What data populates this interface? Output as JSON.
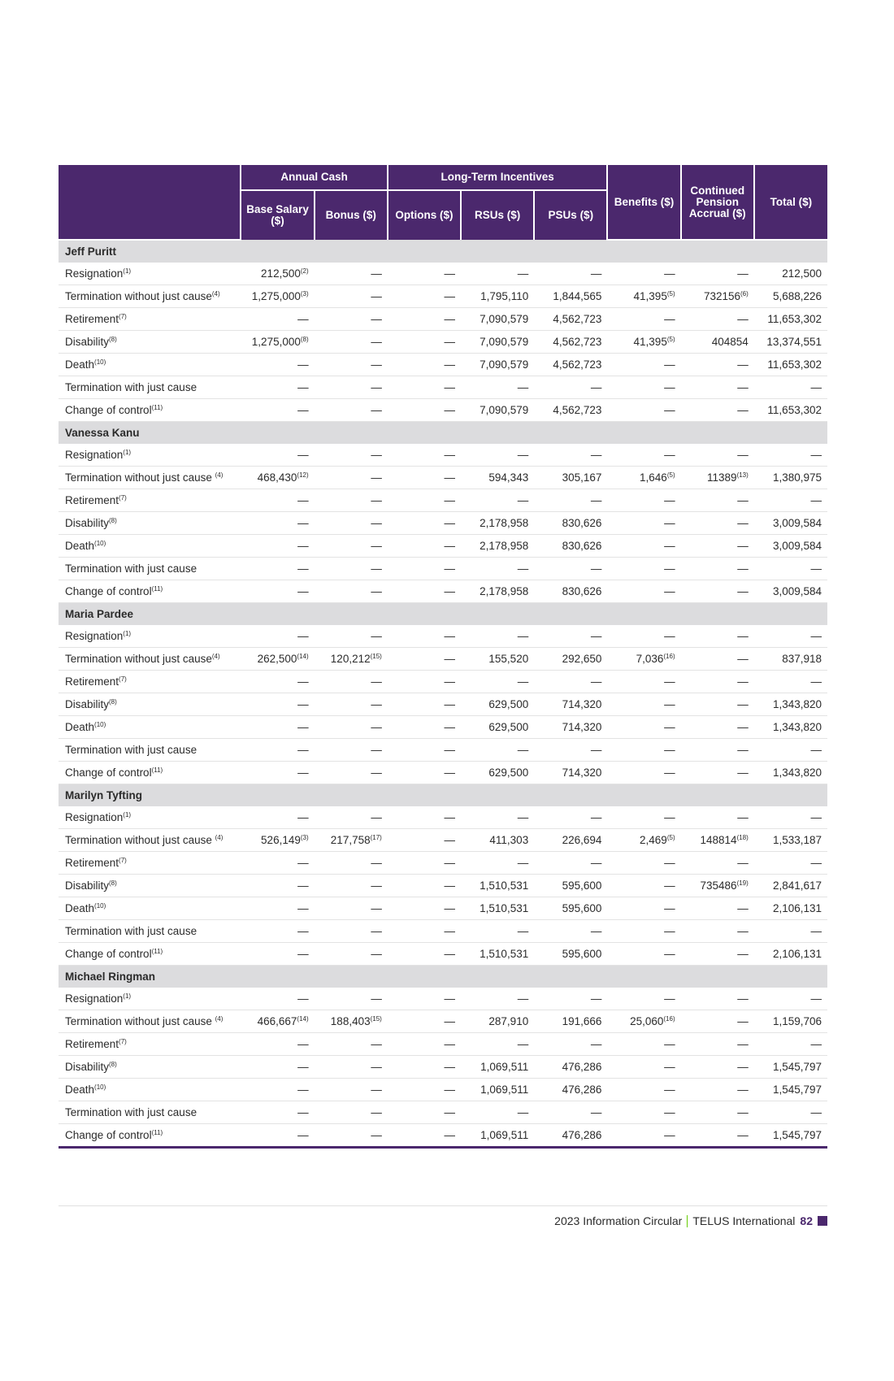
{
  "header": {
    "groups": {
      "annual_cash": "Annual Cash",
      "lti": "Long-Term Incentives"
    },
    "columns": [
      "Base Salary ($)",
      "Bonus ($)",
      "Options ($)",
      "RSUs ($)",
      "PSUs ($)",
      "Benefits ($)",
      "Continued Pension Accrual ($)",
      "Total ($)"
    ]
  },
  "sections": [
    {
      "name": "Jeff Puritt",
      "rows": [
        {
          "label": "Resignation",
          "sup": "(1)",
          "cells": [
            [
              "212,500",
              "(2)"
            ],
            [
              "—"
            ],
            [
              "—"
            ],
            [
              "—"
            ],
            [
              "—"
            ],
            [
              "—"
            ],
            [
              "—"
            ],
            [
              "212,500"
            ]
          ]
        },
        {
          "label": "Termination without just cause",
          "sup": "(4)",
          "cells": [
            [
              "1,275,000",
              "(3)"
            ],
            [
              "—"
            ],
            [
              "—"
            ],
            [
              "1,795,110"
            ],
            [
              "1,844,565"
            ],
            [
              "41,395",
              "(5)"
            ],
            [
              "732156",
              "(6)"
            ],
            [
              "5,688,226"
            ]
          ]
        },
        {
          "label": "Retirement",
          "sup": "(7)",
          "cells": [
            [
              "—"
            ],
            [
              "—"
            ],
            [
              "—"
            ],
            [
              "7,090,579"
            ],
            [
              "4,562,723"
            ],
            [
              "—"
            ],
            [
              "—"
            ],
            [
              "11,653,302"
            ]
          ]
        },
        {
          "label": "Disability",
          "sup": "(8)",
          "cells": [
            [
              "1,275,000",
              "(8)"
            ],
            [
              "—"
            ],
            [
              "—"
            ],
            [
              "7,090,579"
            ],
            [
              "4,562,723"
            ],
            [
              "41,395",
              "(5)"
            ],
            [
              "404854"
            ],
            [
              "13,374,551"
            ]
          ]
        },
        {
          "label": "Death",
          "sup": "(10)",
          "cells": [
            [
              "—"
            ],
            [
              "—"
            ],
            [
              "—"
            ],
            [
              "7,090,579"
            ],
            [
              "4,562,723"
            ],
            [
              "—"
            ],
            [
              "—"
            ],
            [
              "11,653,302"
            ]
          ]
        },
        {
          "label": "Termination with just cause",
          "sup": "",
          "cells": [
            [
              "—"
            ],
            [
              "—"
            ],
            [
              "—"
            ],
            [
              "—"
            ],
            [
              "—"
            ],
            [
              "—"
            ],
            [
              "—"
            ],
            [
              "—"
            ]
          ]
        },
        {
          "label": "Change of control",
          "sup": "(11)",
          "cells": [
            [
              "—"
            ],
            [
              "—"
            ],
            [
              "—"
            ],
            [
              "7,090,579"
            ],
            [
              "4,562,723"
            ],
            [
              "—"
            ],
            [
              "—"
            ],
            [
              "11,653,302"
            ]
          ]
        }
      ]
    },
    {
      "name": "Vanessa Kanu",
      "rows": [
        {
          "label": "Resignation",
          "sup": "(1)",
          "cells": [
            [
              "—"
            ],
            [
              "—"
            ],
            [
              "—"
            ],
            [
              "—"
            ],
            [
              "—"
            ],
            [
              "—"
            ],
            [
              "—"
            ],
            [
              "—"
            ]
          ]
        },
        {
          "label": "Termination without just cause ",
          "sup": "(4)",
          "cells": [
            [
              "468,430",
              "(12)"
            ],
            [
              "—"
            ],
            [
              "—"
            ],
            [
              "594,343"
            ],
            [
              "305,167"
            ],
            [
              "1,646",
              "(5)"
            ],
            [
              "11389",
              "(13)"
            ],
            [
              "1,380,975"
            ]
          ]
        },
        {
          "label": "Retirement",
          "sup": "(7)",
          "cells": [
            [
              "—"
            ],
            [
              "—"
            ],
            [
              "—"
            ],
            [
              "—"
            ],
            [
              "—"
            ],
            [
              "—"
            ],
            [
              "—"
            ],
            [
              "—"
            ]
          ]
        },
        {
          "label": "Disability",
          "sup": "(8)",
          "cells": [
            [
              "—"
            ],
            [
              "—"
            ],
            [
              "—"
            ],
            [
              "2,178,958"
            ],
            [
              "830,626"
            ],
            [
              "—"
            ],
            [
              "—"
            ],
            [
              "3,009,584"
            ]
          ]
        },
        {
          "label": "Death",
          "sup": "(10)",
          "cells": [
            [
              "—"
            ],
            [
              "—"
            ],
            [
              "—"
            ],
            [
              "2,178,958"
            ],
            [
              "830,626"
            ],
            [
              "—"
            ],
            [
              "—"
            ],
            [
              "3,009,584"
            ]
          ]
        },
        {
          "label": "Termination with just cause",
          "sup": "",
          "cells": [
            [
              "—"
            ],
            [
              "—"
            ],
            [
              "—"
            ],
            [
              "—"
            ],
            [
              "—"
            ],
            [
              "—"
            ],
            [
              "—"
            ],
            [
              "—"
            ]
          ]
        },
        {
          "label": "Change of control",
          "sup": "(11)",
          "cells": [
            [
              "—"
            ],
            [
              "—"
            ],
            [
              "—"
            ],
            [
              "2,178,958"
            ],
            [
              "830,626"
            ],
            [
              "—"
            ],
            [
              "—"
            ],
            [
              "3,009,584"
            ]
          ]
        }
      ]
    },
    {
      "name": "Maria Pardee",
      "rows": [
        {
          "label": "Resignation",
          "sup": "(1)",
          "cells": [
            [
              "—"
            ],
            [
              "—"
            ],
            [
              "—"
            ],
            [
              "—"
            ],
            [
              "—"
            ],
            [
              "—"
            ],
            [
              "—"
            ],
            [
              "—"
            ]
          ]
        },
        {
          "label": "Termination without just cause",
          "sup": "(4)",
          "cells": [
            [
              "262,500",
              "(14)"
            ],
            [
              "120,212",
              "(15)"
            ],
            [
              "—"
            ],
            [
              "155,520"
            ],
            [
              "292,650"
            ],
            [
              "7,036",
              "(16)"
            ],
            [
              "—"
            ],
            [
              "837,918"
            ]
          ]
        },
        {
          "label": "Retirement",
          "sup": "(7)",
          "cells": [
            [
              "—"
            ],
            [
              "—"
            ],
            [
              "—"
            ],
            [
              "—"
            ],
            [
              "—"
            ],
            [
              "—"
            ],
            [
              "—"
            ],
            [
              "—"
            ]
          ]
        },
        {
          "label": "Disability",
          "sup": "(8)",
          "cells": [
            [
              "—"
            ],
            [
              "—"
            ],
            [
              "—"
            ],
            [
              "629,500"
            ],
            [
              "714,320"
            ],
            [
              "—"
            ],
            [
              "—"
            ],
            [
              "1,343,820"
            ]
          ]
        },
        {
          "label": "Death",
          "sup": "(10)",
          "cells": [
            [
              "—"
            ],
            [
              "—"
            ],
            [
              "—"
            ],
            [
              "629,500"
            ],
            [
              "714,320"
            ],
            [
              "—"
            ],
            [
              "—"
            ],
            [
              "1,343,820"
            ]
          ]
        },
        {
          "label": "Termination with just cause",
          "sup": "",
          "cells": [
            [
              "—"
            ],
            [
              "—"
            ],
            [
              "—"
            ],
            [
              "—"
            ],
            [
              "—"
            ],
            [
              "—"
            ],
            [
              "—"
            ],
            [
              "—"
            ]
          ]
        },
        {
          "label": "Change of control",
          "sup": "(11)",
          "cells": [
            [
              "—"
            ],
            [
              "—"
            ],
            [
              "—"
            ],
            [
              "629,500"
            ],
            [
              "714,320"
            ],
            [
              "—"
            ],
            [
              "—"
            ],
            [
              "1,343,820"
            ]
          ]
        }
      ]
    },
    {
      "name": "Marilyn Tyfting",
      "rows": [
        {
          "label": "Resignation",
          "sup": "(1)",
          "cells": [
            [
              "—"
            ],
            [
              "—"
            ],
            [
              "—"
            ],
            [
              "—"
            ],
            [
              "—"
            ],
            [
              "—"
            ],
            [
              "—"
            ],
            [
              "—"
            ]
          ]
        },
        {
          "label": "Termination without just cause ",
          "sup": "(4)",
          "cells": [
            [
              "526,149",
              "(3)"
            ],
            [
              "217,758",
              "(17)"
            ],
            [
              "—"
            ],
            [
              "411,303"
            ],
            [
              "226,694"
            ],
            [
              "2,469",
              "(5)"
            ],
            [
              "148814",
              "(18)"
            ],
            [
              "1,533,187"
            ]
          ]
        },
        {
          "label": "Retirement",
          "sup": "(7)",
          "cells": [
            [
              "—"
            ],
            [
              "—"
            ],
            [
              "—"
            ],
            [
              "—"
            ],
            [
              "—"
            ],
            [
              "—"
            ],
            [
              "—"
            ],
            [
              "—"
            ]
          ]
        },
        {
          "label": "Disability",
          "sup": "(8)",
          "cells": [
            [
              "—"
            ],
            [
              "—"
            ],
            [
              "—"
            ],
            [
              "1,510,531"
            ],
            [
              "595,600"
            ],
            [
              "—"
            ],
            [
              "735486",
              "(19)"
            ],
            [
              "2,841,617"
            ]
          ]
        },
        {
          "label": "Death",
          "sup": "(10)",
          "cells": [
            [
              "—"
            ],
            [
              "—"
            ],
            [
              "—"
            ],
            [
              "1,510,531"
            ],
            [
              "595,600"
            ],
            [
              "—"
            ],
            [
              "—"
            ],
            [
              "2,106,131"
            ]
          ]
        },
        {
          "label": "Termination with just cause",
          "sup": "",
          "cells": [
            [
              "—"
            ],
            [
              "—"
            ],
            [
              "—"
            ],
            [
              "—"
            ],
            [
              "—"
            ],
            [
              "—"
            ],
            [
              "—"
            ],
            [
              "—"
            ]
          ]
        },
        {
          "label": "Change of control",
          "sup": "(11)",
          "cells": [
            [
              "—"
            ],
            [
              "—"
            ],
            [
              "—"
            ],
            [
              "1,510,531"
            ],
            [
              "595,600"
            ],
            [
              "—"
            ],
            [
              "—"
            ],
            [
              "2,106,131"
            ]
          ]
        }
      ]
    },
    {
      "name": "Michael Ringman",
      "rows": [
        {
          "label": "Resignation",
          "sup": "(1)",
          "cells": [
            [
              "—"
            ],
            [
              "—"
            ],
            [
              "—"
            ],
            [
              "—"
            ],
            [
              "—"
            ],
            [
              "—"
            ],
            [
              "—"
            ],
            [
              "—"
            ]
          ]
        },
        {
          "label": "Termination without just cause ",
          "sup": "(4)",
          "cells": [
            [
              "466,667",
              "(14)"
            ],
            [
              "188,403",
              "(15)"
            ],
            [
              "—"
            ],
            [
              "287,910"
            ],
            [
              "191,666"
            ],
            [
              "25,060",
              "(16)"
            ],
            [
              "—"
            ],
            [
              "1,159,706"
            ]
          ]
        },
        {
          "label": "Retirement",
          "sup": "(7)",
          "cells": [
            [
              "—"
            ],
            [
              "—"
            ],
            [
              "—"
            ],
            [
              "—"
            ],
            [
              "—"
            ],
            [
              "—"
            ],
            [
              "—"
            ],
            [
              "—"
            ]
          ]
        },
        {
          "label": "Disability",
          "sup": "(8)",
          "cells": [
            [
              "—"
            ],
            [
              "—"
            ],
            [
              "—"
            ],
            [
              "1,069,511"
            ],
            [
              "476,286"
            ],
            [
              "—"
            ],
            [
              "—"
            ],
            [
              "1,545,797"
            ]
          ]
        },
        {
          "label": "Death",
          "sup": "(10)",
          "cells": [
            [
              "—"
            ],
            [
              "—"
            ],
            [
              "—"
            ],
            [
              "1,069,511"
            ],
            [
              "476,286"
            ],
            [
              "—"
            ],
            [
              "—"
            ],
            [
              "1,545,797"
            ]
          ]
        },
        {
          "label": "Termination with just cause",
          "sup": "",
          "cells": [
            [
              "—"
            ],
            [
              "—"
            ],
            [
              "—"
            ],
            [
              "—"
            ],
            [
              "—"
            ],
            [
              "—"
            ],
            [
              "—"
            ],
            [
              "—"
            ]
          ]
        },
        {
          "label": "Change of control",
          "sup": "(11)",
          "cells": [
            [
              "—"
            ],
            [
              "—"
            ],
            [
              "—"
            ],
            [
              "1,069,511"
            ],
            [
              "476,286"
            ],
            [
              "—"
            ],
            [
              "—"
            ],
            [
              "1,545,797"
            ]
          ]
        }
      ]
    }
  ],
  "footer": {
    "doc": "2023 Information Circular",
    "brand": "TELUS International",
    "page": "82"
  },
  "colors": {
    "header_bg": "#4b286d",
    "section_bg": "#dcdcde",
    "separator": "#66cc00"
  }
}
